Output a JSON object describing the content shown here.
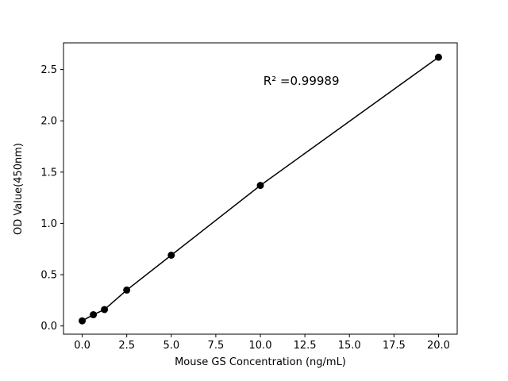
{
  "figure": {
    "background": "#ffffff"
  },
  "chart_data": {
    "type": "scatter",
    "title": "",
    "xlabel": "Mouse GS Concentration (ng/mL)",
    "ylabel": "OD Value(450nm)",
    "x": [
      0,
      0.625,
      1.25,
      2.5,
      5,
      10,
      20
    ],
    "y": [
      0.05,
      0.11,
      0.16,
      0.35,
      0.69,
      1.37,
      2.62
    ],
    "xlim": [
      -1.05,
      21.05
    ],
    "ylim": [
      -0.08,
      2.76
    ],
    "xticks": [
      0.0,
      2.5,
      5.0,
      7.5,
      10.0,
      12.5,
      15.0,
      17.5,
      20.0
    ],
    "yticks": [
      0.0,
      0.5,
      1.0,
      1.5,
      2.0,
      2.5
    ],
    "xtick_labels": [
      "0.0",
      "2.5",
      "5.0",
      "7.5",
      "10.0",
      "12.5",
      "15.0",
      "17.5",
      "20.0"
    ],
    "ytick_labels": [
      "0.0",
      "0.5",
      "1.0",
      "1.5",
      "2.0",
      "2.5"
    ],
    "line_color": "#000000",
    "marker_color": "#000000",
    "grid": false,
    "legend": null,
    "annotation": {
      "text": "R² =0.99989",
      "x": 12.3,
      "y": 2.39
    }
  }
}
